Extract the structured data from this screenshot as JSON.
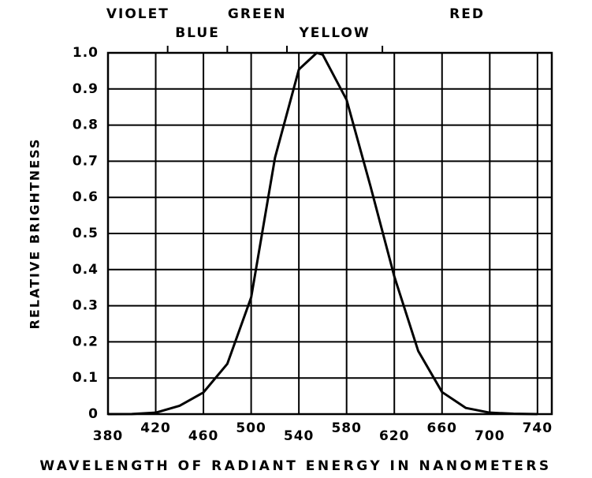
{
  "chart_data": {
    "type": "line",
    "xlabel": "WAVELENGTH OF RADIANT ENERGY IN NANOMETERS",
    "ylabel": "RELATIVE BRIGHTNESS",
    "bands": [
      "VIOLET",
      "BLUE",
      "GREEN",
      "YELLOW",
      "RED"
    ],
    "band_boundaries": [
      430,
      480,
      530,
      610
    ],
    "x": [
      380,
      400,
      420,
      440,
      460,
      480,
      500,
      520,
      540,
      555,
      560,
      580,
      600,
      620,
      640,
      660,
      680,
      700,
      720,
      740
    ],
    "series": [
      {
        "color": "#000000",
        "values": [
          0,
          0.0004,
          0.004,
          0.023,
          0.06,
          0.139,
          0.323,
          0.71,
          0.954,
          1.0,
          0.995,
          0.87,
          0.631,
          0.381,
          0.175,
          0.061,
          0.017,
          0.004,
          0.001,
          0
        ]
      }
    ],
    "xlim": [
      380,
      752
    ],
    "ylim": [
      0,
      1
    ],
    "xticks": [
      380,
      420,
      460,
      500,
      540,
      580,
      620,
      660,
      700,
      740
    ],
    "yticks": [
      0,
      {
        "value": 0.1,
        "label": "0.1"
      },
      {
        "value": 0.2,
        "label": "0.2"
      },
      {
        "value": 0.3,
        "label": "0.3"
      },
      {
        "value": 0.4,
        "label": "0.4"
      },
      {
        "value": 0.5,
        "label": "0.5"
      },
      {
        "value": 0.6,
        "label": "0.6"
      },
      {
        "value": 0.7,
        "label": "0.7"
      },
      {
        "value": 0.8,
        "label": "0.8"
      },
      {
        "value": 0.9,
        "label": "0.9"
      },
      {
        "value": 1,
        "label": "1.0"
      }
    ],
    "grid": true
  }
}
